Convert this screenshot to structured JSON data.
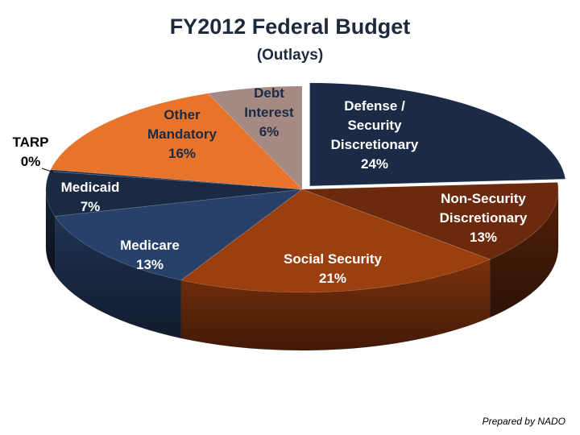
{
  "chart_data": {
    "type": "pie",
    "title": "FY2012 Federal Budget",
    "subtitle": "(Outlays)",
    "style": "3d",
    "slices": [
      {
        "label_lines": [
          "Defense /",
          "Security",
          "Discretionary"
        ],
        "percent_label": "24%",
        "value": 24,
        "color": "#1c2b45",
        "text_color": "#ffffff"
      },
      {
        "label_lines": [
          "Non-Security",
          "Discretionary"
        ],
        "percent_label": "13%",
        "value": 13,
        "color": "#6b2a0d",
        "text_color": "#ffffff"
      },
      {
        "label_lines": [
          "Social Security"
        ],
        "percent_label": "21%",
        "value": 21,
        "color": "#9c3f0f",
        "text_color": "#ffffff"
      },
      {
        "label_lines": [
          "Medicare"
        ],
        "percent_label": "13%",
        "value": 13,
        "color": "#28416a",
        "text_color": "#ffffff"
      },
      {
        "label_lines": [
          "Medicaid"
        ],
        "percent_label": "7%",
        "value": 7,
        "color": "#1a2a42",
        "text_color": "#ffffff"
      },
      {
        "label_lines": [
          "TARP"
        ],
        "percent_label": "0%",
        "value": 0.3,
        "color": "#22314d",
        "text_color": "#000000"
      },
      {
        "label_lines": [
          "Other",
          "Mandatory"
        ],
        "percent_label": "16%",
        "value": 16,
        "color": "#e8732b",
        "text_color": "#1c2b45"
      },
      {
        "label_lines": [
          "Debt",
          "Interest"
        ],
        "percent_label": "6%",
        "value": 6,
        "color": "#a48a82",
        "text_color": "#1c2b45"
      }
    ]
  },
  "credit": "Prepared by NADO"
}
